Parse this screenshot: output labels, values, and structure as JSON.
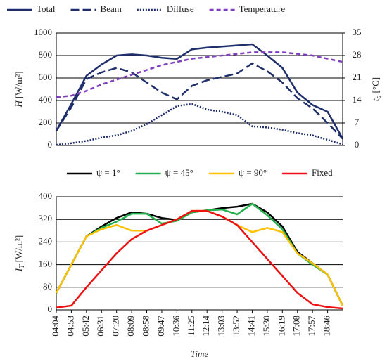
{
  "chart_data": [
    {
      "type": "line",
      "categories": [
        null,
        null,
        null,
        null,
        null,
        null,
        null,
        null,
        null,
        null,
        null,
        null,
        null,
        null,
        null,
        null,
        null,
        null,
        null,
        null
      ],
      "y_label": {
        "symbol": "H",
        "unit": "[W/m²]"
      },
      "y2_label": {
        "symbol": "t",
        "subscript": "a",
        "unit": "[°C]"
      },
      "ylim": [
        0,
        1000
      ],
      "yticks": [
        0,
        200,
        400,
        600,
        800,
        1000
      ],
      "y2lim": [
        0,
        35
      ],
      "y2ticks": [
        0,
        7,
        14,
        21,
        28,
        35
      ],
      "grid": true,
      "legend": "top",
      "series": [
        {
          "name": "Total",
          "color": "#1f2f6b",
          "dash": "solid",
          "values": [
            130,
            370,
            620,
            720,
            800,
            810,
            800,
            780,
            770,
            855,
            870,
            880,
            890,
            900,
            800,
            690,
            470,
            360,
            300,
            60
          ]
        },
        {
          "name": "Beam",
          "color": "#1f2f6b",
          "dash": "long",
          "values": [
            130,
            340,
            590,
            650,
            690,
            650,
            560,
            470,
            410,
            530,
            580,
            610,
            640,
            730,
            660,
            560,
            420,
            330,
            200,
            60
          ]
        },
        {
          "name": "Diffuse",
          "color": "#1f2f6b",
          "dash": "dot",
          "values": [
            5,
            20,
            40,
            70,
            90,
            130,
            190,
            270,
            350,
            370,
            320,
            300,
            270,
            170,
            160,
            140,
            110,
            90,
            50,
            10
          ]
        },
        {
          "name": "Temperature",
          "color": "#7f3fbf",
          "dash": "short",
          "axis": "y2",
          "values": [
            15,
            15.5,
            17,
            19,
            20.5,
            22,
            23.5,
            25,
            26,
            27,
            27.5,
            28,
            28.5,
            29,
            29,
            29,
            28.5,
            28,
            27,
            26
          ]
        }
      ]
    },
    {
      "type": "line",
      "categories": [
        "04:04",
        "04:53",
        "05:42",
        "06:31",
        "07:20",
        "08:09",
        "08:58",
        "09:47",
        "10:36",
        "11:25",
        "12:14",
        "13:03",
        "13:52",
        "14:41",
        "15:30",
        "16:19",
        "17:08",
        "17:57",
        "18:46",
        null
      ],
      "x_label": "Time",
      "y_label": {
        "symbol": "I",
        "subscript": "T",
        "unit": "[W/m²]"
      },
      "ylim": [
        0,
        400
      ],
      "yticks": [
        0,
        80,
        160,
        240,
        320,
        400
      ],
      "grid": true,
      "legend": "top",
      "series": [
        {
          "name": "ψ = 1°",
          "color": "#000000",
          "dash": "solid",
          "values": [
            60,
            160,
            260,
            295,
            325,
            345,
            340,
            325,
            318,
            345,
            352,
            360,
            365,
            375,
            345,
            295,
            205,
            165,
            125,
            15
          ]
        },
        {
          "name": "ψ = 45°",
          "color": "#22b14c",
          "dash": "solid",
          "values": [
            60,
            160,
            260,
            290,
            312,
            340,
            340,
            305,
            315,
            345,
            352,
            355,
            338,
            375,
            335,
            285,
            200,
            160,
            125,
            15
          ]
        },
        {
          "name": "ψ = 90°",
          "color": "#ffc000",
          "dash": "solid",
          "values": [
            60,
            160,
            260,
            285,
            300,
            280,
            280,
            300,
            320,
            350,
            350,
            330,
            300,
            275,
            290,
            275,
            200,
            165,
            125,
            15
          ]
        },
        {
          "name": "Fixed",
          "color": "#ee1111",
          "dash": "solid",
          "values": [
            8,
            15,
            80,
            140,
            200,
            250,
            280,
            300,
            320,
            350,
            350,
            330,
            300,
            240,
            180,
            120,
            60,
            20,
            10,
            5
          ]
        }
      ]
    }
  ]
}
